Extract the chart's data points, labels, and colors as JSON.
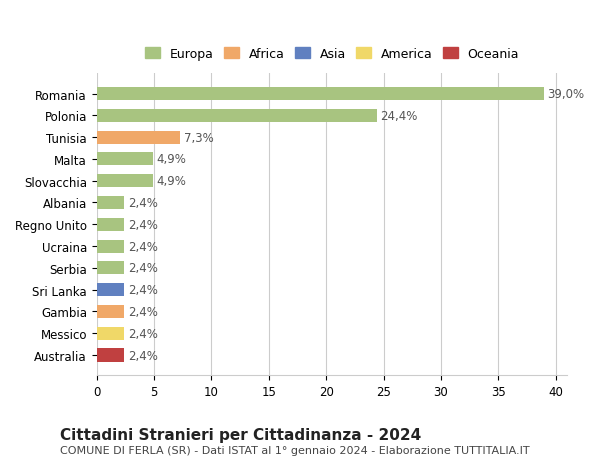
{
  "categories": [
    "Romania",
    "Polonia",
    "Tunisia",
    "Malta",
    "Slovacchia",
    "Albania",
    "Regno Unito",
    "Ucraina",
    "Serbia",
    "Sri Lanka",
    "Gambia",
    "Messico",
    "Australia"
  ],
  "values": [
    39.0,
    24.4,
    7.3,
    4.9,
    4.9,
    2.4,
    2.4,
    2.4,
    2.4,
    2.4,
    2.4,
    2.4,
    2.4
  ],
  "labels": [
    "39,0%",
    "24,4%",
    "7,3%",
    "4,9%",
    "4,9%",
    "2,4%",
    "2,4%",
    "2,4%",
    "2,4%",
    "2,4%",
    "2,4%",
    "2,4%",
    "2,4%"
  ],
  "bar_colors": [
    "#a8c480",
    "#a8c480",
    "#f0a868",
    "#a8c480",
    "#a8c480",
    "#a8c480",
    "#a8c480",
    "#a8c480",
    "#a8c480",
    "#6080c0",
    "#f0a868",
    "#f0d868",
    "#c04040"
  ],
  "continent_colors": {
    "Europa": "#a8c480",
    "Africa": "#f0a868",
    "Asia": "#6080c0",
    "America": "#f0d868",
    "Oceania": "#c04040"
  },
  "xlim": [
    0,
    41
  ],
  "xticks": [
    0,
    5,
    10,
    15,
    20,
    25,
    30,
    35,
    40
  ],
  "title": "Cittadini Stranieri per Cittadinanza - 2024",
  "subtitle": "COMUNE DI FERLA (SR) - Dati ISTAT al 1° gennaio 2024 - Elaborazione TUTTITALIA.IT",
  "background_color": "#ffffff",
  "grid_color": "#cccccc",
  "bar_height": 0.6,
  "label_fontsize": 8.5,
  "title_fontsize": 11,
  "subtitle_fontsize": 8,
  "tick_fontsize": 8.5
}
